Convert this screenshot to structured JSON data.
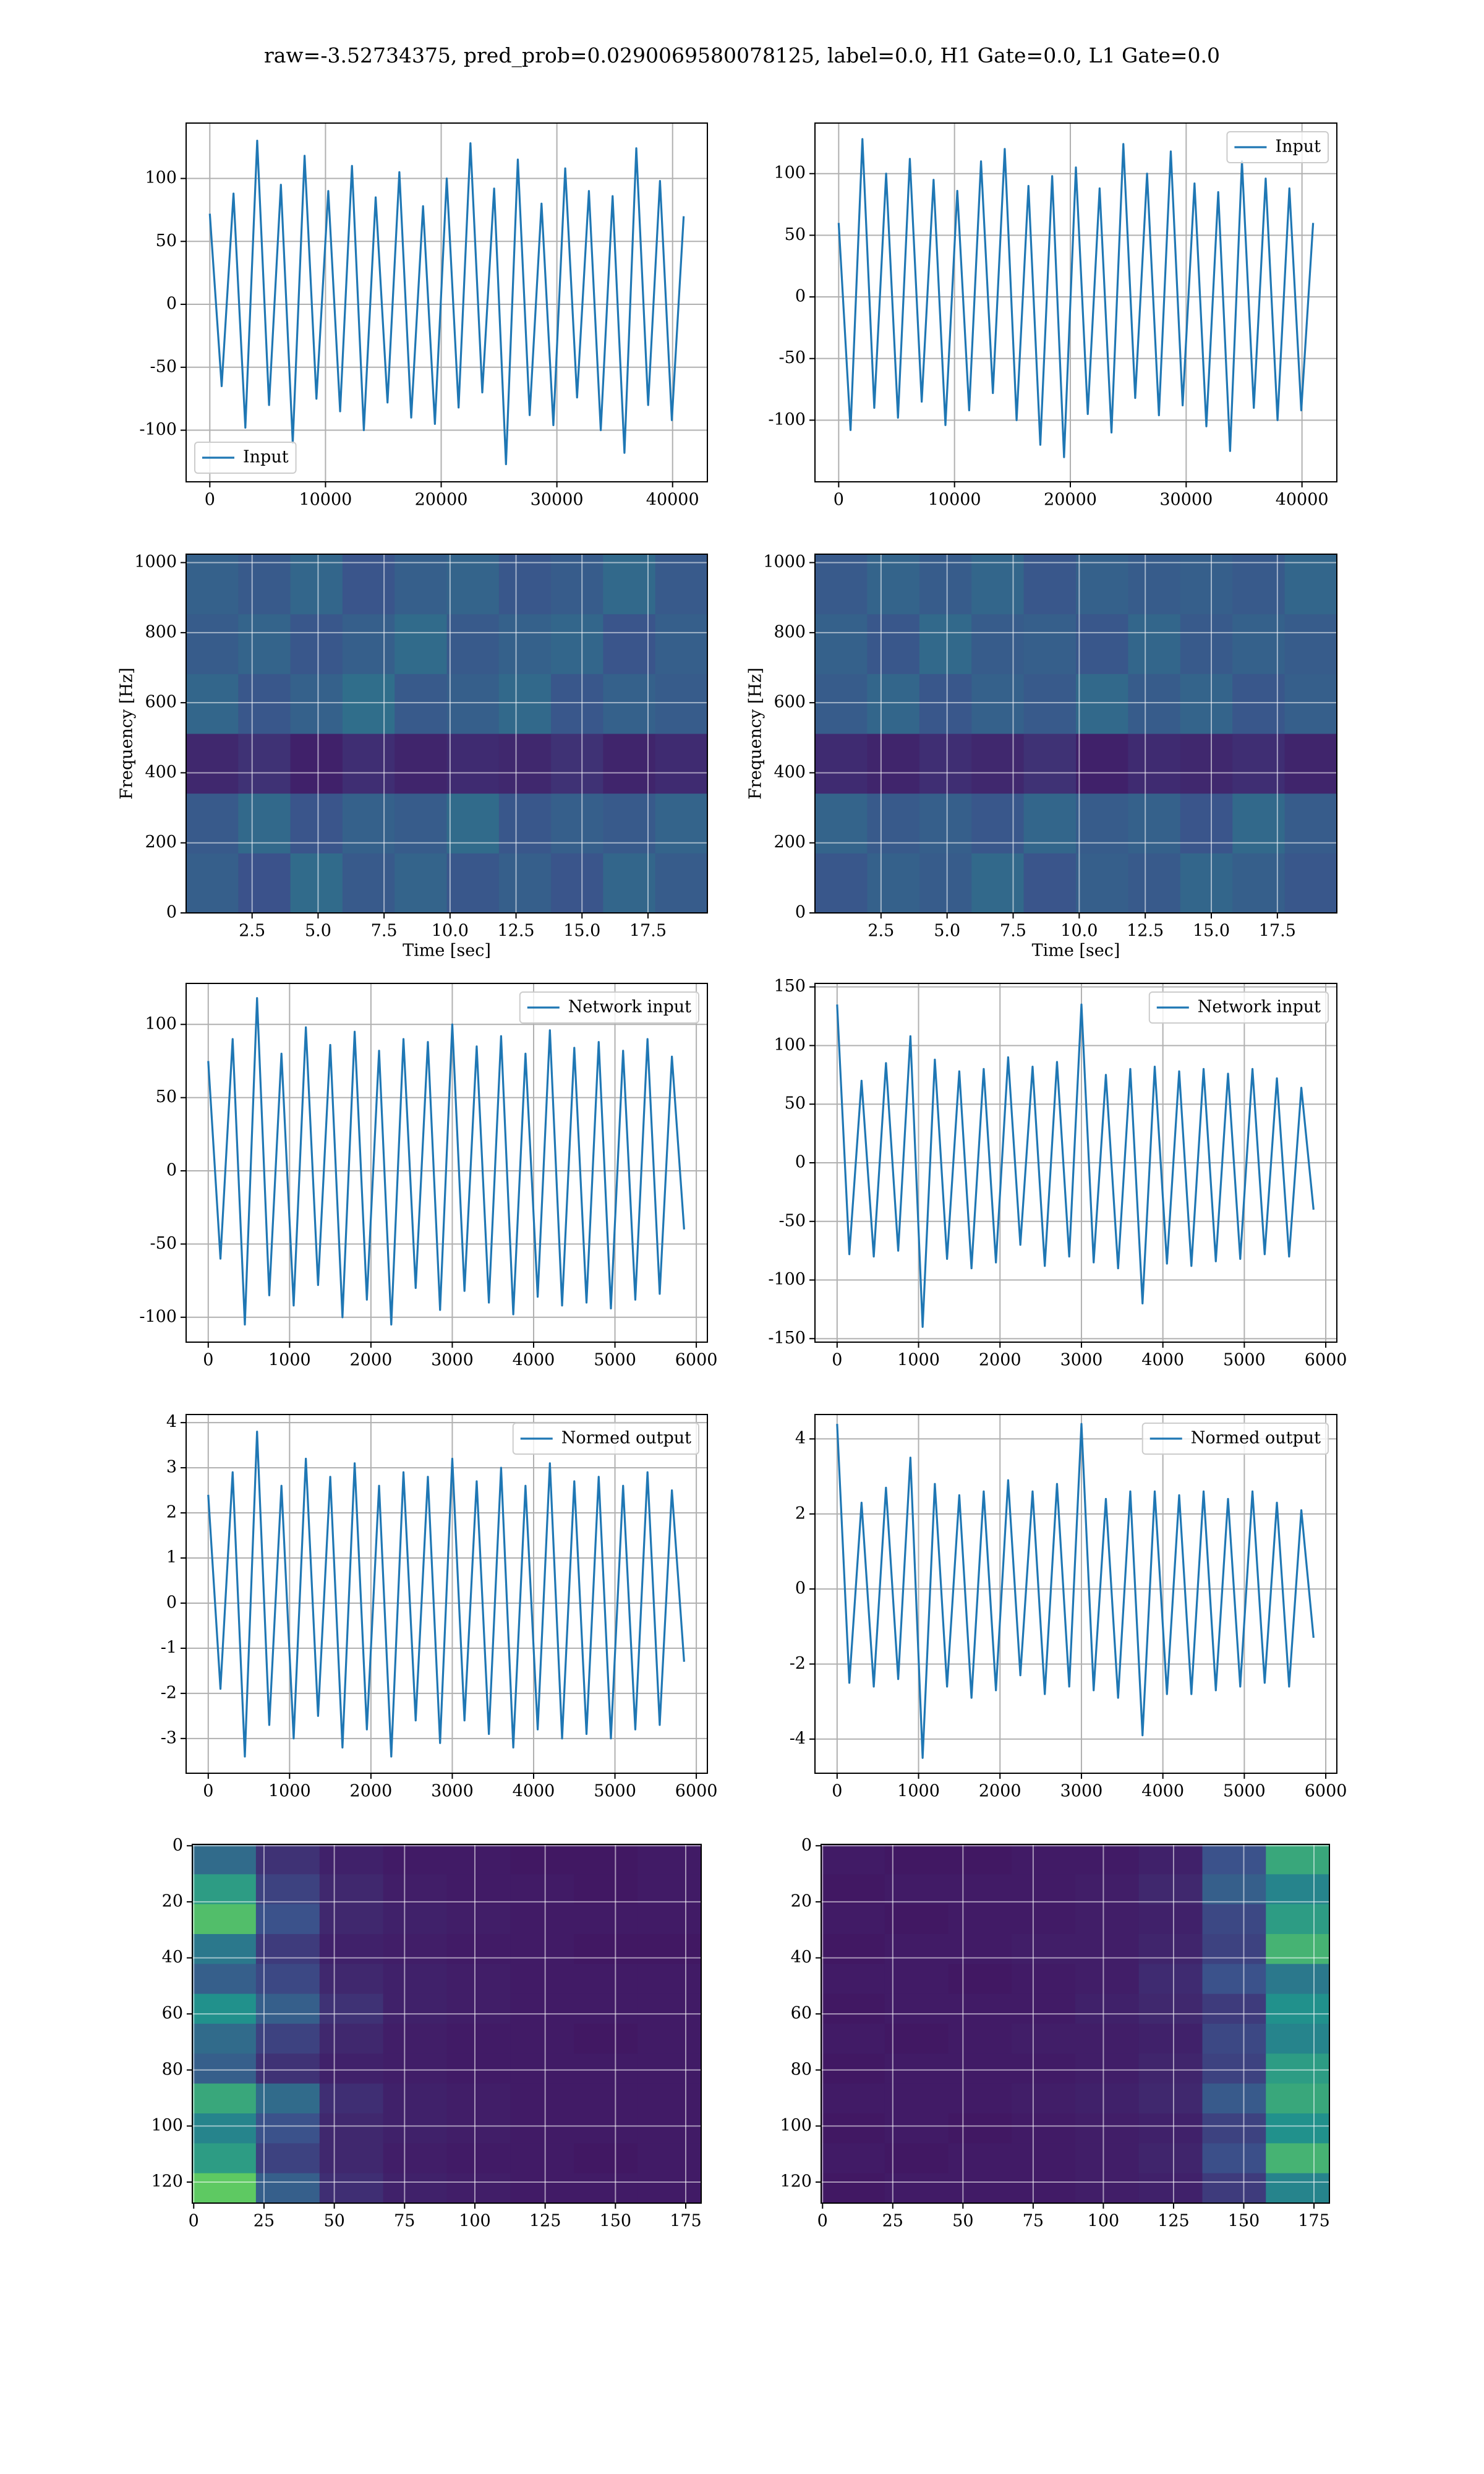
{
  "title": "raw=-3.52734375, pred_prob=0.0290069580078125, label=0.0, H1 Gate=0.0, L1 Gate=0.0",
  "chart_data": [
    {
      "type": "line",
      "x": [
        0,
        1024,
        2048,
        3072,
        4096,
        5120,
        6144,
        7168,
        8192,
        9216,
        10240,
        11264,
        12288,
        13312,
        14336,
        15360,
        16384,
        17408,
        18432,
        19456,
        20480,
        21504,
        22528,
        23552,
        24576,
        25600,
        26624,
        27648,
        28672,
        29696,
        30720,
        31744,
        32768,
        33792,
        34816,
        35840,
        36864,
        37888,
        38912,
        39936,
        40960
      ],
      "series": [
        {
          "name": "Input",
          "color": "#1f77b4",
          "values": [
            72,
            -65,
            88,
            -98,
            130,
            -80,
            95,
            -110,
            118,
            -75,
            90,
            -85,
            110,
            -100,
            85,
            -78,
            105,
            -90,
            78,
            -95,
            100,
            -82,
            128,
            -70,
            92,
            -127,
            115,
            -88,
            80,
            -96,
            108,
            -74,
            90,
            -100,
            86,
            -118,
            124,
            -80,
            98,
            -92,
            70
          ]
        }
      ],
      "xlim": [
        -2048,
        43008
      ],
      "ylim": [
        -141,
        144
      ],
      "xticks": [
        0,
        10000,
        20000,
        30000,
        40000
      ],
      "yticks": [
        -100,
        -50,
        0,
        50,
        100
      ],
      "grid": true,
      "legend": "lower left"
    },
    {
      "type": "line",
      "x": [
        0,
        1024,
        2048,
        3072,
        4096,
        5120,
        6144,
        7168,
        8192,
        9216,
        10240,
        11264,
        12288,
        13312,
        14336,
        15360,
        16384,
        17408,
        18432,
        19456,
        20480,
        21504,
        22528,
        23552,
        24576,
        25600,
        26624,
        27648,
        28672,
        29696,
        30720,
        31744,
        32768,
        33792,
        34816,
        35840,
        36864,
        37888,
        38912,
        39936,
        40960
      ],
      "series": [
        {
          "name": "Input",
          "color": "#1f77b4",
          "values": [
            60,
            -108,
            128,
            -90,
            100,
            -98,
            112,
            -85,
            95,
            -104,
            86,
            -92,
            110,
            -78,
            120,
            -100,
            90,
            -120,
            98,
            -130,
            105,
            -95,
            88,
            -110,
            124,
            -82,
            100,
            -96,
            118,
            -88,
            92,
            -105,
            85,
            -125,
            110,
            -90,
            96,
            -100,
            88,
            -92,
            60
          ]
        }
      ],
      "xlim": [
        -2048,
        43008
      ],
      "ylim": [
        -150,
        141
      ],
      "xticks": [
        0,
        10000,
        20000,
        30000,
        40000
      ],
      "yticks": [
        -100,
        -50,
        0,
        50,
        100
      ],
      "grid": true,
      "legend": "upper right"
    },
    {
      "type": "heatmap",
      "colormap": "viridis",
      "z": [
        [
          0.3,
          0.25,
          0.35,
          0.28,
          0.32,
          0.27,
          0.3,
          0.26,
          0.33,
          0.29
        ],
        [
          0.28,
          0.34,
          0.26,
          0.31,
          0.29,
          0.35,
          0.27,
          0.3,
          0.28,
          0.32
        ],
        [
          0.12,
          0.15,
          0.1,
          0.14,
          0.11,
          0.13,
          0.12,
          0.15,
          0.11,
          0.13
        ],
        [
          0.33,
          0.27,
          0.31,
          0.36,
          0.28,
          0.3,
          0.34,
          0.27,
          0.31,
          0.29
        ],
        [
          0.29,
          0.32,
          0.27,
          0.3,
          0.35,
          0.28,
          0.31,
          0.33,
          0.26,
          0.3
        ],
        [
          0.31,
          0.28,
          0.33,
          0.26,
          0.3,
          0.32,
          0.27,
          0.29,
          0.34,
          0.28
        ]
      ],
      "xlim": [
        0,
        19.75
      ],
      "ylim": [
        0,
        1024
      ],
      "xticks": [
        2.5,
        {
          "value": 5,
          "label": "5.0"
        },
        7.5,
        {
          "value": 10,
          "label": "10.0"
        },
        12.5,
        {
          "value": 15,
          "label": "15.0"
        },
        17.5
      ],
      "yticks": [
        0,
        200,
        400,
        600,
        800,
        1000
      ],
      "xlabel": "Time [sec]",
      "ylabel": "Frequency [Hz]",
      "grid": true
    },
    {
      "type": "heatmap",
      "colormap": "viridis",
      "z": [
        [
          0.27,
          0.31,
          0.29,
          0.34,
          0.26,
          0.3,
          0.28,
          0.33,
          0.3,
          0.27
        ],
        [
          0.32,
          0.28,
          0.3,
          0.27,
          0.33,
          0.29,
          0.31,
          0.26,
          0.34,
          0.29
        ],
        [
          0.13,
          0.11,
          0.14,
          0.12,
          0.15,
          0.1,
          0.13,
          0.12,
          0.14,
          0.11
        ],
        [
          0.29,
          0.33,
          0.27,
          0.31,
          0.28,
          0.34,
          0.29,
          0.32,
          0.27,
          0.3
        ],
        [
          0.31,
          0.27,
          0.34,
          0.29,
          0.3,
          0.27,
          0.33,
          0.28,
          0.31,
          0.29
        ],
        [
          0.28,
          0.32,
          0.29,
          0.33,
          0.27,
          0.31,
          0.29,
          0.3,
          0.28,
          0.33
        ]
      ],
      "xlim": [
        0,
        19.75
      ],
      "ylim": [
        0,
        1024
      ],
      "xticks": [
        2.5,
        {
          "value": 5,
          "label": "5.0"
        },
        7.5,
        {
          "value": 10,
          "label": "10.0"
        },
        12.5,
        {
          "value": 15,
          "label": "15.0"
        },
        17.5
      ],
      "yticks": [
        0,
        200,
        400,
        600,
        800,
        1000
      ],
      "xlabel": "Time [sec]",
      "ylabel": "Frequency [Hz]",
      "grid": true
    },
    {
      "type": "line",
      "x": [
        0,
        150,
        300,
        450,
        600,
        750,
        900,
        1050,
        1200,
        1350,
        1500,
        1650,
        1800,
        1950,
        2100,
        2250,
        2400,
        2550,
        2700,
        2850,
        3000,
        3150,
        3300,
        3450,
        3600,
        3750,
        3900,
        4050,
        4200,
        4350,
        4500,
        4650,
        4800,
        4950,
        5100,
        5250,
        5400,
        5550,
        5700,
        5850
      ],
      "series": [
        {
          "name": "Network input",
          "color": "#1f77b4",
          "values": [
            75,
            -60,
            90,
            -105,
            118,
            -85,
            80,
            -92,
            98,
            -78,
            86,
            -100,
            95,
            -88,
            82,
            -105,
            90,
            -80,
            88,
            -95,
            100,
            -82,
            85,
            -90,
            92,
            -98,
            80,
            -86,
            96,
            -92,
            84,
            -90,
            88,
            -94,
            82,
            -88,
            90,
            -84,
            78,
            -40
          ]
        }
      ],
      "xlim": [
        -272,
        6136
      ],
      "ylim": [
        -117,
        128
      ],
      "xticks": [
        0,
        1000,
        2000,
        3000,
        4000,
        5000,
        6000
      ],
      "yticks": [
        -100,
        -50,
        0,
        50,
        100
      ],
      "grid": true,
      "legend": "upper right"
    },
    {
      "type": "line",
      "x": [
        0,
        150,
        300,
        450,
        600,
        750,
        900,
        1050,
        1200,
        1350,
        1500,
        1650,
        1800,
        1950,
        2100,
        2250,
        2400,
        2550,
        2700,
        2850,
        3000,
        3150,
        3300,
        3450,
        3600,
        3750,
        3900,
        4050,
        4200,
        4350,
        4500,
        4650,
        4800,
        4950,
        5100,
        5250,
        5400,
        5550,
        5700,
        5850
      ],
      "series": [
        {
          "name": "Network input",
          "color": "#1f77b4",
          "values": [
            135,
            -78,
            70,
            -80,
            85,
            -75,
            108,
            -140,
            88,
            -82,
            78,
            -90,
            80,
            -85,
            90,
            -70,
            82,
            -88,
            86,
            -80,
            135,
            -85,
            75,
            -90,
            80,
            -120,
            82,
            -86,
            78,
            -88,
            80,
            -84,
            76,
            -82,
            80,
            -78,
            72,
            -80,
            64,
            -40
          ]
        }
      ],
      "xlim": [
        -272,
        6136
      ],
      "ylim": [
        -153,
        153
      ],
      "xticks": [
        0,
        1000,
        2000,
        3000,
        4000,
        5000,
        6000
      ],
      "yticks": [
        -150,
        -100,
        -50,
        0,
        50,
        100,
        150
      ],
      "grid": true,
      "legend": "upper right"
    },
    {
      "type": "line",
      "x": [
        0,
        150,
        300,
        450,
        600,
        750,
        900,
        1050,
        1200,
        1350,
        1500,
        1650,
        1800,
        1950,
        2100,
        2250,
        2400,
        2550,
        2700,
        2850,
        3000,
        3150,
        3300,
        3450,
        3600,
        3750,
        3900,
        4050,
        4200,
        4350,
        4500,
        4650,
        4800,
        4950,
        5100,
        5250,
        5400,
        5550,
        5700,
        5850
      ],
      "series": [
        {
          "name": "Normed output",
          "color": "#1f77b4",
          "values": [
            2.4,
            -1.9,
            2.9,
            -3.4,
            3.8,
            -2.7,
            2.6,
            -3.0,
            3.2,
            -2.5,
            2.8,
            -3.2,
            3.1,
            -2.8,
            2.6,
            -3.4,
            2.9,
            -2.6,
            2.8,
            -3.1,
            3.2,
            -2.6,
            2.7,
            -2.9,
            3.0,
            -3.2,
            2.6,
            -2.8,
            3.1,
            -3.0,
            2.7,
            -2.9,
            2.8,
            -3.0,
            2.6,
            -2.8,
            2.9,
            -2.7,
            2.5,
            -1.3
          ]
        }
      ],
      "xlim": [
        -272,
        6136
      ],
      "ylim": [
        -3.77,
        4.18
      ],
      "xticks": [
        0,
        1000,
        2000,
        3000,
        4000,
        5000,
        6000
      ],
      "yticks": [
        -3,
        -2,
        -1,
        0,
        1,
        2,
        3,
        4
      ],
      "grid": true,
      "legend": "upper right"
    },
    {
      "type": "line",
      "x": [
        0,
        150,
        300,
        450,
        600,
        750,
        900,
        1050,
        1200,
        1350,
        1500,
        1650,
        1800,
        1950,
        2100,
        2250,
        2400,
        2550,
        2700,
        2850,
        3000,
        3150,
        3300,
        3450,
        3600,
        3750,
        3900,
        4050,
        4200,
        4350,
        4500,
        4650,
        4800,
        4950,
        5100,
        5250,
        5400,
        5550,
        5700,
        5850
      ],
      "series": [
        {
          "name": "Normed output",
          "color": "#1f77b4",
          "values": [
            4.4,
            -2.5,
            2.3,
            -2.6,
            2.7,
            -2.4,
            3.5,
            -4.5,
            2.8,
            -2.6,
            2.5,
            -2.9,
            2.6,
            -2.7,
            2.9,
            -2.3,
            2.6,
            -2.8,
            2.8,
            -2.6,
            4.4,
            -2.7,
            2.4,
            -2.9,
            2.6,
            -3.9,
            2.6,
            -2.8,
            2.5,
            -2.8,
            2.6,
            -2.7,
            2.4,
            -2.6,
            2.6,
            -2.5,
            2.3,
            -2.6,
            2.1,
            -1.3
          ]
        }
      ],
      "xlim": [
        -272,
        6136
      ],
      "ylim": [
        -4.91,
        4.65
      ],
      "xticks": [
        0,
        1000,
        2000,
        3000,
        4000,
        5000,
        6000
      ],
      "yticks": [
        -4,
        -2,
        0,
        2,
        4
      ],
      "grid": true,
      "legend": "upper right"
    },
    {
      "type": "heatmap",
      "colormap": "viridis",
      "z": [
        [
          0.35,
          0.15,
          0.1,
          0.08,
          0.08,
          0.07,
          0.07,
          0.08
        ],
        [
          0.55,
          0.2,
          0.12,
          0.09,
          0.08,
          0.08,
          0.07,
          0.08
        ],
        [
          0.7,
          0.25,
          0.12,
          0.1,
          0.09,
          0.08,
          0.08,
          0.08
        ],
        [
          0.4,
          0.18,
          0.1,
          0.09,
          0.08,
          0.08,
          0.07,
          0.07
        ],
        [
          0.3,
          0.22,
          0.12,
          0.1,
          0.09,
          0.08,
          0.08,
          0.08
        ],
        [
          0.5,
          0.3,
          0.15,
          0.1,
          0.09,
          0.08,
          0.08,
          0.08
        ],
        [
          0.35,
          0.2,
          0.12,
          0.09,
          0.08,
          0.08,
          0.07,
          0.08
        ],
        [
          0.3,
          0.15,
          0.1,
          0.09,
          0.08,
          0.08,
          0.08,
          0.08
        ],
        [
          0.6,
          0.35,
          0.14,
          0.1,
          0.09,
          0.08,
          0.08,
          0.08
        ],
        [
          0.45,
          0.25,
          0.12,
          0.1,
          0.09,
          0.08,
          0.08,
          0.08
        ],
        [
          0.55,
          0.2,
          0.12,
          0.09,
          0.08,
          0.08,
          0.07,
          0.08
        ],
        [
          0.75,
          0.3,
          0.14,
          0.1,
          0.09,
          0.08,
          0.08,
          0.08
        ]
      ],
      "xlim": [
        -0.5,
        180.5
      ],
      "ylim": [
        127.5,
        -0.5
      ],
      "xticks": [
        0,
        25,
        50,
        75,
        100,
        125,
        150,
        175
      ],
      "yticks": [
        0,
        20,
        40,
        60,
        80,
        100,
        120
      ],
      "grid": true
    },
    {
      "type": "heatmap",
      "colormap": "viridis",
      "z": [
        [
          0.08,
          0.07,
          0.07,
          0.08,
          0.08,
          0.1,
          0.25,
          0.6
        ],
        [
          0.07,
          0.08,
          0.08,
          0.08,
          0.09,
          0.12,
          0.3,
          0.45
        ],
        [
          0.08,
          0.07,
          0.08,
          0.08,
          0.09,
          0.1,
          0.22,
          0.55
        ],
        [
          0.07,
          0.08,
          0.08,
          0.09,
          0.09,
          0.11,
          0.2,
          0.65
        ],
        [
          0.08,
          0.08,
          0.07,
          0.08,
          0.09,
          0.13,
          0.25,
          0.4
        ],
        [
          0.07,
          0.08,
          0.08,
          0.08,
          0.1,
          0.12,
          0.18,
          0.5
        ],
        [
          0.08,
          0.07,
          0.08,
          0.09,
          0.09,
          0.1,
          0.22,
          0.45
        ],
        [
          0.07,
          0.08,
          0.08,
          0.08,
          0.09,
          0.11,
          0.2,
          0.55
        ],
        [
          0.08,
          0.08,
          0.08,
          0.09,
          0.1,
          0.12,
          0.28,
          0.6
        ],
        [
          0.07,
          0.08,
          0.07,
          0.08,
          0.09,
          0.1,
          0.2,
          0.5
        ],
        [
          0.08,
          0.07,
          0.08,
          0.08,
          0.09,
          0.11,
          0.24,
          0.65
        ],
        [
          0.07,
          0.08,
          0.08,
          0.08,
          0.09,
          0.1,
          0.18,
          0.45
        ]
      ],
      "xlim": [
        -0.5,
        180.5
      ],
      "ylim": [
        127.5,
        -0.5
      ],
      "xticks": [
        0,
        25,
        50,
        75,
        100,
        125,
        150,
        175
      ],
      "yticks": [
        0,
        20,
        40,
        60,
        80,
        100,
        120
      ],
      "grid": true
    }
  ]
}
